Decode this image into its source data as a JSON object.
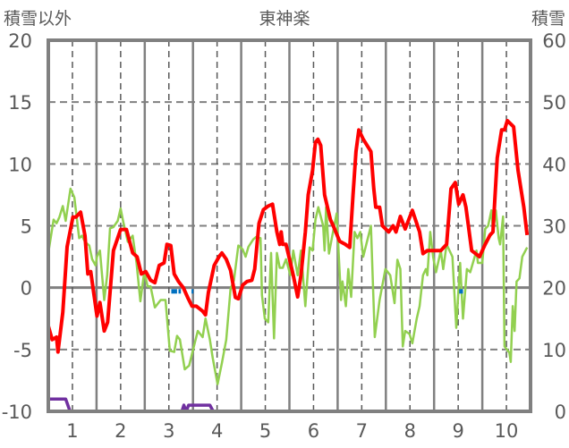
{
  "chart_data": {
    "type": "line",
    "title": "東神楽",
    "ylabel_left": "積雪以外",
    "ylabel_right": "積雪",
    "xlim": [
      0.5,
      10.5
    ],
    "ylim_left": [
      -10,
      20
    ],
    "ylim_right": [
      0,
      60
    ],
    "x_ticks": [
      "1",
      "2",
      "3",
      "4",
      "5",
      "6",
      "7",
      "8",
      "9",
      "10"
    ],
    "y_left_ticks": [
      "20",
      "15",
      "10",
      "5",
      "0",
      "-5",
      "-10"
    ],
    "y_right_ticks": [
      "60",
      "50",
      "40",
      "30",
      "20",
      "10",
      "0"
    ],
    "grid": true,
    "colors": {
      "red": "#ff0000",
      "green": "#92d050",
      "purple": "#7030a0",
      "blue": "#0070c0",
      "frame": "#808080"
    },
    "series": [
      {
        "name": "red",
        "axis": "left",
        "color": "#ff0000",
        "points": [
          [
            0.5,
            -3.1
          ],
          [
            0.58,
            -4.2
          ],
          [
            0.67,
            -4.0
          ],
          [
            0.7,
            -5.2
          ],
          [
            0.8,
            -2.0
          ],
          [
            0.89,
            3.3
          ],
          [
            1.01,
            5.7
          ],
          [
            1.07,
            5.7
          ],
          [
            1.17,
            6.1
          ],
          [
            1.26,
            4.2
          ],
          [
            1.32,
            1.1
          ],
          [
            1.38,
            1.3
          ],
          [
            1.51,
            -2.3
          ],
          [
            1.57,
            -1.2
          ],
          [
            1.66,
            -3.5
          ],
          [
            1.73,
            -2.8
          ],
          [
            1.85,
            3.0
          ],
          [
            2.0,
            4.7
          ],
          [
            2.12,
            4.7
          ],
          [
            2.25,
            2.8
          ],
          [
            2.34,
            2.5
          ],
          [
            2.43,
            1.1
          ],
          [
            2.52,
            1.3
          ],
          [
            2.62,
            0.6
          ],
          [
            2.71,
            0.4
          ],
          [
            2.8,
            1.8
          ],
          [
            2.9,
            2.0
          ],
          [
            2.96,
            3.5
          ],
          [
            3.04,
            3.4
          ],
          [
            3.11,
            1.1
          ],
          [
            3.2,
            0.5
          ],
          [
            3.3,
            0.0
          ],
          [
            3.39,
            -0.8
          ],
          [
            3.48,
            -1.5
          ],
          [
            3.57,
            -1.5
          ],
          [
            3.7,
            -1.9
          ],
          [
            3.76,
            -2.2
          ],
          [
            3.82,
            -0.4
          ],
          [
            3.94,
            1.8
          ],
          [
            4.04,
            2.5
          ],
          [
            4.1,
            2.8
          ],
          [
            4.19,
            2.3
          ],
          [
            4.28,
            1.4
          ],
          [
            4.38,
            -0.8
          ],
          [
            4.44,
            -0.9
          ],
          [
            4.53,
            0.2
          ],
          [
            4.62,
            0.5
          ],
          [
            4.72,
            0.6
          ],
          [
            4.78,
            1.5
          ],
          [
            4.87,
            5.2
          ],
          [
            4.96,
            6.3
          ],
          [
            5.06,
            6.6
          ],
          [
            5.15,
            6.75
          ],
          [
            5.24,
            4.5
          ],
          [
            5.3,
            3.5
          ],
          [
            5.33,
            4.5
          ],
          [
            5.36,
            3.5
          ],
          [
            5.43,
            3.5
          ],
          [
            5.52,
            2.0
          ],
          [
            5.58,
            1.0
          ],
          [
            5.67,
            -0.75
          ],
          [
            5.74,
            1.0
          ],
          [
            5.83,
            4.5
          ],
          [
            5.89,
            7.5
          ],
          [
            5.98,
            9.5
          ],
          [
            6.04,
            11.75
          ],
          [
            6.09,
            12.0
          ],
          [
            6.15,
            11.5
          ],
          [
            6.23,
            7.5
          ],
          [
            6.35,
            5.5
          ],
          [
            6.41,
            5.0
          ],
          [
            6.54,
            3.75
          ],
          [
            6.66,
            3.5
          ],
          [
            6.75,
            3.25
          ],
          [
            6.82,
            7.5
          ],
          [
            6.88,
            11.0
          ],
          [
            6.94,
            12.75
          ],
          [
            7.03,
            12.0
          ],
          [
            7.19,
            11.0
          ],
          [
            7.25,
            8.0
          ],
          [
            7.29,
            6.5
          ],
          [
            7.37,
            6.5
          ],
          [
            7.43,
            5.0
          ],
          [
            7.56,
            4.5
          ],
          [
            7.65,
            5.0
          ],
          [
            7.71,
            4.5
          ],
          [
            7.8,
            5.75
          ],
          [
            7.9,
            4.75
          ],
          [
            8.05,
            6.25
          ],
          [
            8.2,
            4.5
          ],
          [
            8.27,
            2.75
          ],
          [
            8.36,
            3.0
          ],
          [
            8.51,
            3.0
          ],
          [
            8.64,
            3.0
          ],
          [
            8.76,
            3.5
          ],
          [
            8.85,
            8.0
          ],
          [
            8.94,
            8.5
          ],
          [
            9.01,
            6.75
          ],
          [
            9.1,
            7.5
          ],
          [
            9.16,
            6.5
          ],
          [
            9.28,
            3.0
          ],
          [
            9.44,
            2.5
          ],
          [
            9.56,
            3.5
          ],
          [
            9.66,
            4.25
          ],
          [
            9.72,
            4.5
          ],
          [
            9.81,
            10.5
          ],
          [
            9.9,
            12.75
          ],
          [
            9.96,
            12.75
          ],
          [
            10.02,
            13.5
          ],
          [
            10.15,
            13.0
          ],
          [
            10.24,
            9.5
          ],
          [
            10.36,
            6.5
          ],
          [
            10.43,
            4.25
          ]
        ]
      },
      {
        "name": "green",
        "axis": "left",
        "color": "#92d050",
        "points": [
          [
            0.5,
            2.8
          ],
          [
            0.61,
            5.5
          ],
          [
            0.67,
            5.2
          ],
          [
            0.73,
            5.7
          ],
          [
            0.8,
            6.6
          ],
          [
            0.86,
            5.4
          ],
          [
            0.96,
            8.0
          ],
          [
            1.04,
            7.3
          ],
          [
            1.14,
            4.0
          ],
          [
            1.2,
            4.2
          ],
          [
            1.26,
            3.7
          ],
          [
            1.35,
            3.4
          ],
          [
            1.41,
            2.3
          ],
          [
            1.48,
            1.8
          ],
          [
            1.51,
            2.5
          ],
          [
            1.57,
            3.0
          ],
          [
            1.66,
            -1.0
          ],
          [
            1.72,
            1.0
          ],
          [
            1.78,
            4.8
          ],
          [
            1.85,
            4.9
          ],
          [
            1.94,
            5.4
          ],
          [
            2.0,
            6.4
          ],
          [
            2.06,
            5.2
          ],
          [
            2.15,
            3.7
          ],
          [
            2.25,
            4.2
          ],
          [
            2.33,
            2.0
          ],
          [
            2.41,
            -1.1
          ],
          [
            2.49,
            1.3
          ],
          [
            2.56,
            0.1
          ],
          [
            2.62,
            0.1
          ],
          [
            2.71,
            -1.6
          ],
          [
            2.83,
            -1.0
          ],
          [
            2.93,
            -1.0
          ],
          [
            3.02,
            -5.1
          ],
          [
            3.11,
            -5.2
          ],
          [
            3.17,
            -3.9
          ],
          [
            3.23,
            -4.2
          ],
          [
            3.33,
            -6.6
          ],
          [
            3.42,
            -6.3
          ],
          [
            3.51,
            -4.9
          ],
          [
            3.6,
            -3.5
          ],
          [
            3.7,
            -4.0
          ],
          [
            3.76,
            -2.5
          ],
          [
            3.85,
            -4.2
          ],
          [
            3.91,
            -5.7
          ],
          [
            4.01,
            -7.8
          ],
          [
            4.1,
            -6.1
          ],
          [
            4.19,
            -4.2
          ],
          [
            4.28,
            -0.1
          ],
          [
            4.35,
            0.6
          ],
          [
            4.44,
            3.4
          ],
          [
            4.53,
            3.1
          ],
          [
            4.59,
            2.5
          ],
          [
            4.65,
            3.3
          ],
          [
            4.75,
            3.9
          ],
          [
            4.81,
            4.1
          ],
          [
            4.9,
            4.0
          ],
          [
            4.93,
            -0.6
          ],
          [
            4.99,
            -2.5
          ],
          [
            5.06,
            -2.8
          ],
          [
            5.12,
            2.8
          ],
          [
            5.18,
            -4.1
          ],
          [
            5.24,
            2.8
          ],
          [
            5.3,
            1.6
          ],
          [
            5.36,
            1.6
          ],
          [
            5.43,
            2.3
          ],
          [
            5.52,
            1.0
          ],
          [
            5.58,
            3.0
          ],
          [
            5.67,
            1.0
          ],
          [
            5.74,
            3.0
          ],
          [
            5.83,
            -1.5
          ],
          [
            5.92,
            3.25
          ],
          [
            5.98,
            3.0
          ],
          [
            6.04,
            5.5
          ],
          [
            6.1,
            6.5
          ],
          [
            6.2,
            5.0
          ],
          [
            6.23,
            3.0
          ],
          [
            6.26,
            6.5
          ],
          [
            6.32,
            2.75
          ],
          [
            6.38,
            4.0
          ],
          [
            6.48,
            6.0
          ],
          [
            6.57,
            -1.0
          ],
          [
            6.6,
            0.5
          ],
          [
            6.67,
            -1.5
          ],
          [
            6.72,
            1.5
          ],
          [
            6.78,
            -0.75
          ],
          [
            6.85,
            4.5
          ],
          [
            6.91,
            4.0
          ],
          [
            6.97,
            4.5
          ],
          [
            7.03,
            2.5
          ],
          [
            7.19,
            5.0
          ],
          [
            7.27,
            -4.0
          ],
          [
            7.37,
            -1.0
          ],
          [
            7.49,
            1.5
          ],
          [
            7.59,
            1.0
          ],
          [
            7.68,
            -1.25
          ],
          [
            7.74,
            2.25
          ],
          [
            7.8,
            1.5
          ],
          [
            7.85,
            -4.75
          ],
          [
            7.9,
            -3.5
          ],
          [
            7.99,
            -3.75
          ],
          [
            8.05,
            -4.5
          ],
          [
            8.14,
            -2.5
          ],
          [
            8.2,
            -1.5
          ],
          [
            8.27,
            1.0
          ],
          [
            8.33,
            1.5
          ],
          [
            8.36,
            1.0
          ],
          [
            8.42,
            4.5
          ],
          [
            8.48,
            2.5
          ],
          [
            8.54,
            1.25
          ],
          [
            8.64,
            3.0
          ],
          [
            8.69,
            1.5
          ],
          [
            8.76,
            3.5
          ],
          [
            8.88,
            2.5
          ],
          [
            8.96,
            -3.25
          ],
          [
            9.04,
            2.0
          ],
          [
            9.1,
            -2.5
          ],
          [
            9.18,
            1.5
          ],
          [
            9.25,
            1.25
          ],
          [
            9.38,
            3.0
          ],
          [
            9.41,
            2.0
          ],
          [
            9.5,
            2.0
          ],
          [
            9.56,
            4.75
          ],
          [
            9.62,
            5.0
          ],
          [
            9.69,
            6.25
          ],
          [
            9.72,
            4.5
          ],
          [
            9.78,
            6.25
          ],
          [
            9.84,
            4.0
          ],
          [
            9.87,
            3.5
          ],
          [
            9.93,
            5.75
          ],
          [
            9.96,
            -4.75
          ],
          [
            10.06,
            -5.25
          ],
          [
            10.09,
            -6.0
          ],
          [
            10.13,
            -1.5
          ],
          [
            10.17,
            -3.5
          ],
          [
            10.21,
            0.5
          ],
          [
            10.27,
            0.75
          ],
          [
            10.33,
            2.5
          ],
          [
            10.43,
            3.25
          ]
        ]
      },
      {
        "name": "purple",
        "axis": "right",
        "color": "#7030a0",
        "points": [
          [
            0.5,
            2
          ],
          [
            0.86,
            2
          ],
          [
            0.95,
            0
          ],
          [
            3.27,
            0
          ],
          [
            3.31,
            1
          ],
          [
            3.36,
            0
          ],
          [
            3.41,
            1
          ],
          [
            3.85,
            1
          ],
          [
            3.92,
            0
          ],
          [
            10.5,
            0
          ]
        ]
      },
      {
        "name": "blue",
        "axis": "left",
        "color": "#0070c0",
        "segments": [
          [
            3.05,
            3.17,
            -0.3
          ],
          [
            3.2,
            3.25,
            -0.3
          ],
          [
            3.47,
            3.51,
            -0.3
          ],
          [
            9.02,
            9.1,
            -0.3
          ]
        ]
      }
    ]
  }
}
